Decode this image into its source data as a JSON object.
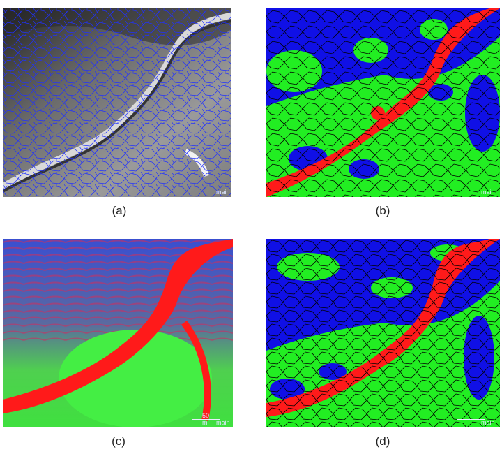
{
  "panels": [
    {
      "id": "a",
      "caption": "(a)",
      "scale_label": "main",
      "scale_value": ""
    },
    {
      "id": "b",
      "caption": "(b)",
      "scale_label": "main",
      "scale_value": ""
    },
    {
      "id": "c",
      "caption": "(c)",
      "scale_label": "main",
      "scale_value": "50 m"
    },
    {
      "id": "d",
      "caption": "(d)",
      "scale_label": "main",
      "scale_value": ""
    }
  ],
  "colors": {
    "segment_outline": "#1f2bff",
    "class_green": "#22ee22",
    "class_blue": "#1010e6",
    "class_red": "#ff1a1a",
    "boundary": "#000000"
  }
}
